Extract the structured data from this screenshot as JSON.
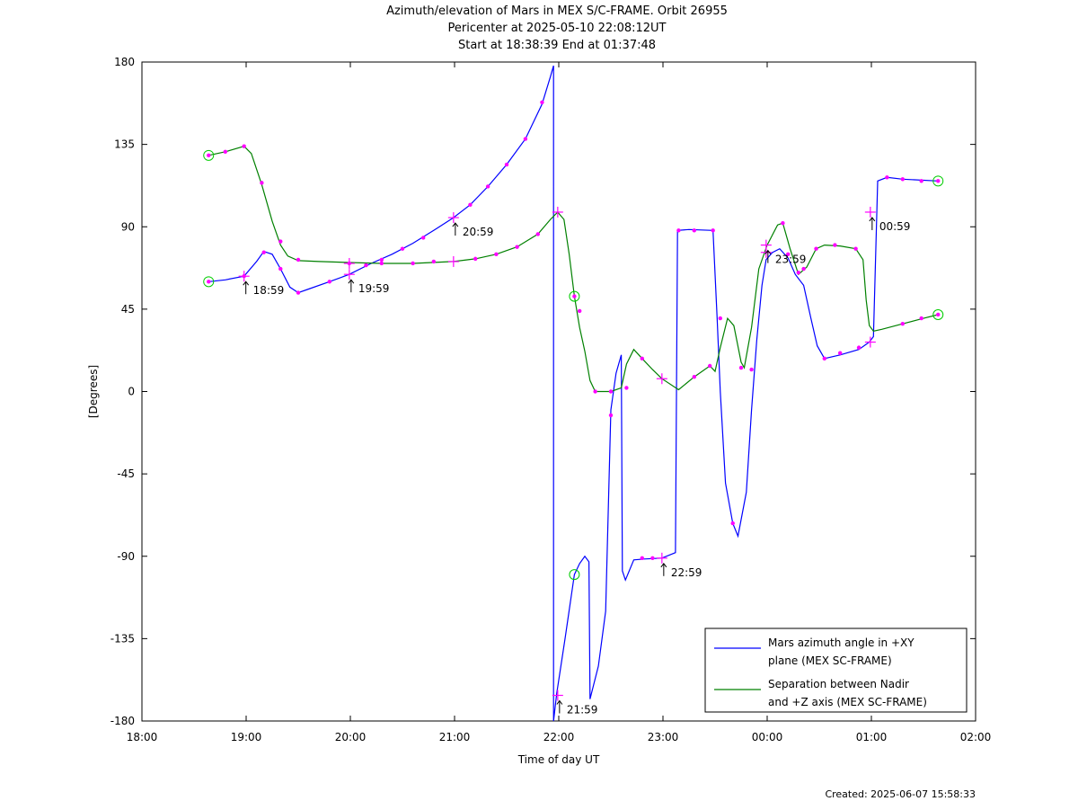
{
  "title": {
    "line1": "Azimuth/elevation of Mars in MEX S/C-FRAME.  Orbit 26955",
    "line2": "Pericenter at 2025-05-10 22:08:12UT",
    "line3": "Start at 18:38:39 End at 01:37:48"
  },
  "footer": {
    "created": "Created: 2025-06-07 15:58:33"
  },
  "chart_data": {
    "type": "line",
    "xlabel": "Time of day UT",
    "ylabel": "[Degrees]",
    "xlim": [
      18.0,
      26.0
    ],
    "ylim": [
      -180,
      180
    ],
    "x_ticks": [
      "18:00",
      "19:00",
      "20:00",
      "21:00",
      "22:00",
      "23:00",
      "00:00",
      "01:00",
      "02:00"
    ],
    "y_ticks": [
      "180",
      "135",
      "90",
      "45",
      "0",
      "-45",
      "-90",
      "-135",
      "-180"
    ],
    "grid": false,
    "legend_position": "bottom-right",
    "series": [
      {
        "name": "Mars azimuth angle in +XY plane (MEX SC-FRAME)",
        "legend_lines": [
          "Mars azimuth angle in +XY",
          "plane (MEX SC-FRAME)"
        ],
        "color": "#0000ff",
        "points": [
          [
            18.64,
            60
          ],
          [
            18.8,
            61
          ],
          [
            18.98,
            63
          ],
          [
            19.1,
            71
          ],
          [
            19.17,
            76.5
          ],
          [
            19.25,
            75
          ],
          [
            19.33,
            67
          ],
          [
            19.42,
            57
          ],
          [
            19.5,
            54
          ],
          [
            19.6,
            56
          ],
          [
            19.8,
            60
          ],
          [
            19.99,
            64
          ],
          [
            20.2,
            70
          ],
          [
            20.4,
            75
          ],
          [
            20.6,
            81
          ],
          [
            20.8,
            88
          ],
          [
            20.99,
            95
          ],
          [
            21.15,
            102
          ],
          [
            21.32,
            112
          ],
          [
            21.5,
            124
          ],
          [
            21.68,
            138
          ],
          [
            21.84,
            157
          ],
          [
            21.92,
            172
          ],
          [
            21.95,
            178
          ],
          [
            21.95,
            -180
          ],
          [
            21.98,
            -165
          ],
          [
            22.06,
            -135
          ],
          [
            22.15,
            -100
          ],
          [
            22.2,
            -94
          ],
          [
            22.25,
            -90
          ],
          [
            22.29,
            -93
          ],
          [
            22.3,
            -168
          ],
          [
            22.38,
            -150
          ],
          [
            22.45,
            -120
          ],
          [
            22.5,
            -10
          ],
          [
            22.55,
            10
          ],
          [
            22.6,
            20
          ],
          [
            22.61,
            -98
          ],
          [
            22.64,
            -103
          ],
          [
            22.72,
            -92
          ],
          [
            22.82,
            -91.5
          ],
          [
            22.99,
            -91
          ],
          [
            23.12,
            -88
          ],
          [
            23.14,
            88
          ],
          [
            23.25,
            88.5
          ],
          [
            23.48,
            88
          ],
          [
            23.52,
            40
          ],
          [
            23.55,
            0
          ],
          [
            23.6,
            -50
          ],
          [
            23.67,
            -72
          ],
          [
            23.72,
            -79
          ],
          [
            23.8,
            -55
          ],
          [
            23.85,
            -10
          ],
          [
            23.9,
            28
          ],
          [
            23.95,
            58
          ],
          [
            23.99,
            72
          ],
          [
            24.05,
            76
          ],
          [
            24.12,
            78
          ],
          [
            24.2,
            73
          ],
          [
            24.27,
            64
          ],
          [
            24.35,
            58
          ],
          [
            24.42,
            40
          ],
          [
            24.48,
            25
          ],
          [
            24.55,
            18
          ],
          [
            24.7,
            20
          ],
          [
            24.88,
            23
          ],
          [
            24.98,
            27
          ],
          [
            25.02,
            30
          ],
          [
            25.06,
            115
          ],
          [
            25.15,
            117
          ],
          [
            25.3,
            116
          ],
          [
            25.64,
            115
          ]
        ],
        "markers": [
          [
            18.64,
            60
          ],
          [
            18.98,
            63
          ],
          [
            19.17,
            76
          ],
          [
            19.33,
            67
          ],
          [
            19.5,
            54
          ],
          [
            19.8,
            60
          ],
          [
            20.15,
            69
          ],
          [
            20.3,
            72
          ],
          [
            20.5,
            78
          ],
          [
            20.7,
            84
          ],
          [
            21.15,
            102
          ],
          [
            21.32,
            112
          ],
          [
            21.5,
            124
          ],
          [
            21.68,
            138
          ],
          [
            21.84,
            158
          ],
          [
            22.5,
            -13
          ],
          [
            22.65,
            2
          ],
          [
            22.8,
            -91
          ],
          [
            22.9,
            -91
          ],
          [
            23.15,
            88
          ],
          [
            23.3,
            88
          ],
          [
            23.48,
            88
          ],
          [
            23.67,
            -72
          ],
          [
            23.85,
            12
          ],
          [
            24.2,
            75
          ],
          [
            24.35,
            67
          ],
          [
            24.55,
            18
          ],
          [
            24.7,
            21
          ],
          [
            24.88,
            24
          ],
          [
            25.15,
            117
          ],
          [
            25.3,
            116
          ],
          [
            25.48,
            115
          ],
          [
            25.64,
            115
          ]
        ]
      },
      {
        "name": "Separation between Nadir and +Z axis (MEX SC-FRAME)",
        "legend_lines": [
          "Separation between Nadir",
          "and +Z axis (MEX SC-FRAME)"
        ],
        "color": "#008000",
        "points": [
          [
            18.64,
            129
          ],
          [
            18.8,
            131
          ],
          [
            18.98,
            134
          ],
          [
            19.05,
            130
          ],
          [
            19.15,
            113
          ],
          [
            19.25,
            93
          ],
          [
            19.33,
            80
          ],
          [
            19.4,
            74
          ],
          [
            19.5,
            71.5
          ],
          [
            19.7,
            71
          ],
          [
            19.99,
            70.5
          ],
          [
            20.3,
            70
          ],
          [
            20.6,
            70
          ],
          [
            20.99,
            71
          ],
          [
            21.2,
            72.5
          ],
          [
            21.4,
            75
          ],
          [
            21.6,
            79
          ],
          [
            21.8,
            86
          ],
          [
            21.92,
            94
          ],
          [
            21.99,
            98
          ],
          [
            22.05,
            94
          ],
          [
            22.1,
            75
          ],
          [
            22.15,
            52
          ],
          [
            22.2,
            35
          ],
          [
            22.25,
            22
          ],
          [
            22.3,
            6
          ],
          [
            22.35,
            0
          ],
          [
            22.5,
            0
          ],
          [
            22.6,
            2
          ],
          [
            22.65,
            15
          ],
          [
            22.72,
            23
          ],
          [
            22.8,
            18
          ],
          [
            22.9,
            12
          ],
          [
            22.99,
            7
          ],
          [
            23.15,
            1
          ],
          [
            23.3,
            8
          ],
          [
            23.45,
            14
          ],
          [
            23.5,
            11
          ],
          [
            23.55,
            24
          ],
          [
            23.62,
            40
          ],
          [
            23.68,
            36
          ],
          [
            23.75,
            16
          ],
          [
            23.78,
            13
          ],
          [
            23.85,
            35
          ],
          [
            23.92,
            67
          ],
          [
            24.0,
            80
          ],
          [
            24.1,
            91
          ],
          [
            24.15,
            92
          ],
          [
            24.22,
            78
          ],
          [
            24.3,
            64
          ],
          [
            24.38,
            68
          ],
          [
            24.47,
            78
          ],
          [
            24.55,
            80
          ],
          [
            24.7,
            79.5
          ],
          [
            24.85,
            78
          ],
          [
            24.92,
            72
          ],
          [
            24.95,
            50
          ],
          [
            24.98,
            36
          ],
          [
            25.02,
            33
          ],
          [
            25.1,
            34
          ],
          [
            25.3,
            37
          ],
          [
            25.5,
            40
          ],
          [
            25.64,
            42
          ]
        ],
        "markers": [
          [
            18.64,
            129
          ],
          [
            18.8,
            131
          ],
          [
            18.98,
            134
          ],
          [
            19.15,
            114
          ],
          [
            19.33,
            82
          ],
          [
            19.5,
            72
          ],
          [
            19.99,
            70
          ],
          [
            20.3,
            70
          ],
          [
            20.6,
            70
          ],
          [
            20.8,
            71
          ],
          [
            21.2,
            72.5
          ],
          [
            21.4,
            75
          ],
          [
            21.6,
            79
          ],
          [
            21.8,
            86
          ],
          [
            22.15,
            52
          ],
          [
            22.2,
            44
          ],
          [
            22.35,
            0
          ],
          [
            22.5,
            0
          ],
          [
            22.8,
            18
          ],
          [
            23.3,
            8
          ],
          [
            23.45,
            14
          ],
          [
            23.55,
            40
          ],
          [
            23.75,
            13
          ],
          [
            24.15,
            92
          ],
          [
            24.3,
            65
          ],
          [
            24.47,
            78
          ],
          [
            24.65,
            80
          ],
          [
            24.85,
            78
          ],
          [
            25.3,
            37
          ],
          [
            25.48,
            40
          ],
          [
            25.64,
            42
          ]
        ]
      }
    ],
    "hour_ticks": [
      {
        "label": "18:59",
        "x": 18.98,
        "y": 63
      },
      {
        "label": "19:59",
        "x": 19.99,
        "y": 64
      },
      {
        "label": "20:59",
        "x": 20.99,
        "y": 95
      },
      {
        "label": "21:59",
        "x": 21.99,
        "y": -166
      },
      {
        "label": "22:59",
        "x": 22.99,
        "y": -91
      },
      {
        "label": "23:59",
        "x": 23.99,
        "y": 80
      },
      {
        "label": "00:59",
        "x": 24.99,
        "y": 98
      }
    ],
    "extra_crosses": [
      [
        19.99,
        70
      ],
      [
        20.99,
        71
      ],
      [
        21.99,
        98
      ],
      [
        22.99,
        7
      ],
      [
        23.99,
        76
      ],
      [
        24.99,
        27
      ]
    ],
    "circle_markers": [
      [
        18.64,
        60
      ],
      [
        18.64,
        129
      ],
      [
        22.15,
        52
      ],
      [
        22.15,
        -100
      ],
      [
        25.64,
        115
      ],
      [
        25.64,
        42
      ]
    ],
    "marker_color": "#ff00ff",
    "circle_color": "#00cc00"
  }
}
